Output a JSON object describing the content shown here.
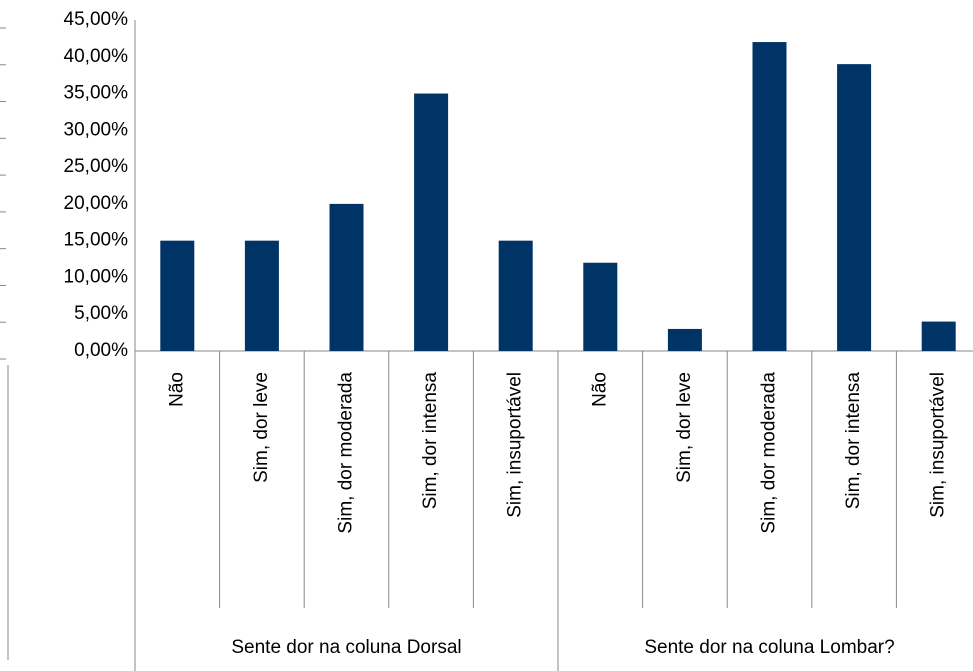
{
  "chart_data": {
    "type": "bar",
    "categories": [
      "Não",
      "Sim, dor leve",
      "Sim, dor moderada",
      "Sim, dor intensa",
      "Sim, insuportável",
      "Não",
      "Sim, dor leve",
      "Sim, dor moderada",
      "Sim, dor intensa",
      "Sim, insuportável"
    ],
    "groups": [
      "Sente dor na coluna Dorsal",
      "Sente dor na coluna Lombar?"
    ],
    "values": [
      15,
      15,
      20,
      35,
      15,
      12,
      3,
      42,
      39,
      4
    ],
    "color": "#003366",
    "ylim": [
      0,
      45
    ],
    "yticks": [
      {
        "value": 0,
        "label": "0,00%"
      },
      {
        "value": 5,
        "label": "5,00%"
      },
      {
        "value": 10,
        "label": "10,00%"
      },
      {
        "value": 15,
        "label": "15,00%"
      },
      {
        "value": 20,
        "label": "20,00%"
      },
      {
        "value": 25,
        "label": "25,00%"
      },
      {
        "value": 30,
        "label": "30,00%"
      },
      {
        "value": 35,
        "label": "35,00%"
      },
      {
        "value": 40,
        "label": "40,00%"
      },
      {
        "value": 45,
        "label": "45,00%"
      }
    ],
    "grid": false
  }
}
